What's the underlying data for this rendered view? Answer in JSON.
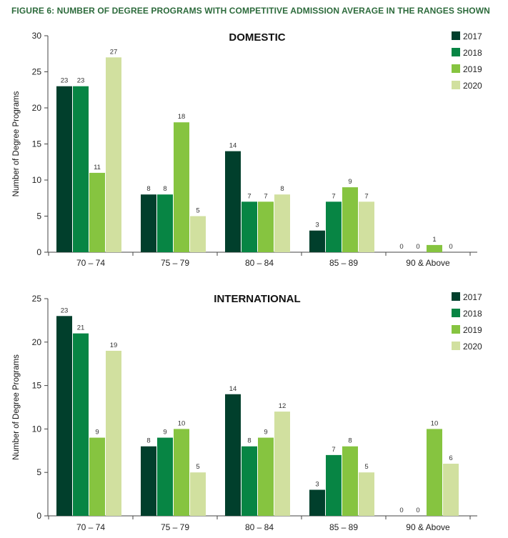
{
  "figure_title": "FIGURE 6: NUMBER OF DEGREE PROGRAMS WITH COMPETITIVE ADMISSION AVERAGE IN THE RANGES SHOWN",
  "colors": {
    "2017": "#013f2c",
    "2018": "#078544",
    "2019": "#86c440",
    "2020": "#d1e09f",
    "axis": "#444444",
    "title_green": "#2d6b3c"
  },
  "chart_data": [
    {
      "id": "domestic",
      "type": "bar",
      "title": "DOMESTIC",
      "xlabel": "",
      "ylabel": "Number of Degree Programs",
      "ylim": [
        0,
        30
      ],
      "yticks": [
        0,
        5,
        10,
        15,
        20,
        25,
        30
      ],
      "categories": [
        "70 – 74",
        "75 – 79",
        "80 – 84",
        "85 – 89",
        "90 & Above"
      ],
      "legend_position": "top-right",
      "grid": false,
      "series": [
        {
          "name": "2017",
          "values": [
            23,
            8,
            14,
            3,
            0
          ]
        },
        {
          "name": "2018",
          "values": [
            23,
            8,
            7,
            7,
            0
          ]
        },
        {
          "name": "2019",
          "values": [
            11,
            18,
            7,
            9,
            1
          ]
        },
        {
          "name": "2020",
          "values": [
            27,
            5,
            8,
            7,
            0
          ]
        }
      ]
    },
    {
      "id": "international",
      "type": "bar",
      "title": "INTERNATIONAL",
      "xlabel": "",
      "ylabel": "Number of Degree Programs",
      "ylim": [
        0,
        25
      ],
      "yticks": [
        0,
        5,
        10,
        15,
        20,
        25
      ],
      "categories": [
        "70 – 74",
        "75 – 79",
        "80 – 84",
        "85 – 89",
        "90 & Above"
      ],
      "legend_position": "top-right",
      "grid": false,
      "series": [
        {
          "name": "2017",
          "values": [
            23,
            8,
            14,
            3,
            0
          ]
        },
        {
          "name": "2018",
          "values": [
            21,
            9,
            8,
            7,
            0
          ]
        },
        {
          "name": "2019",
          "values": [
            9,
            10,
            9,
            8,
            10
          ]
        },
        {
          "name": "2020",
          "values": [
            19,
            5,
            12,
            5,
            6
          ]
        }
      ]
    }
  ]
}
